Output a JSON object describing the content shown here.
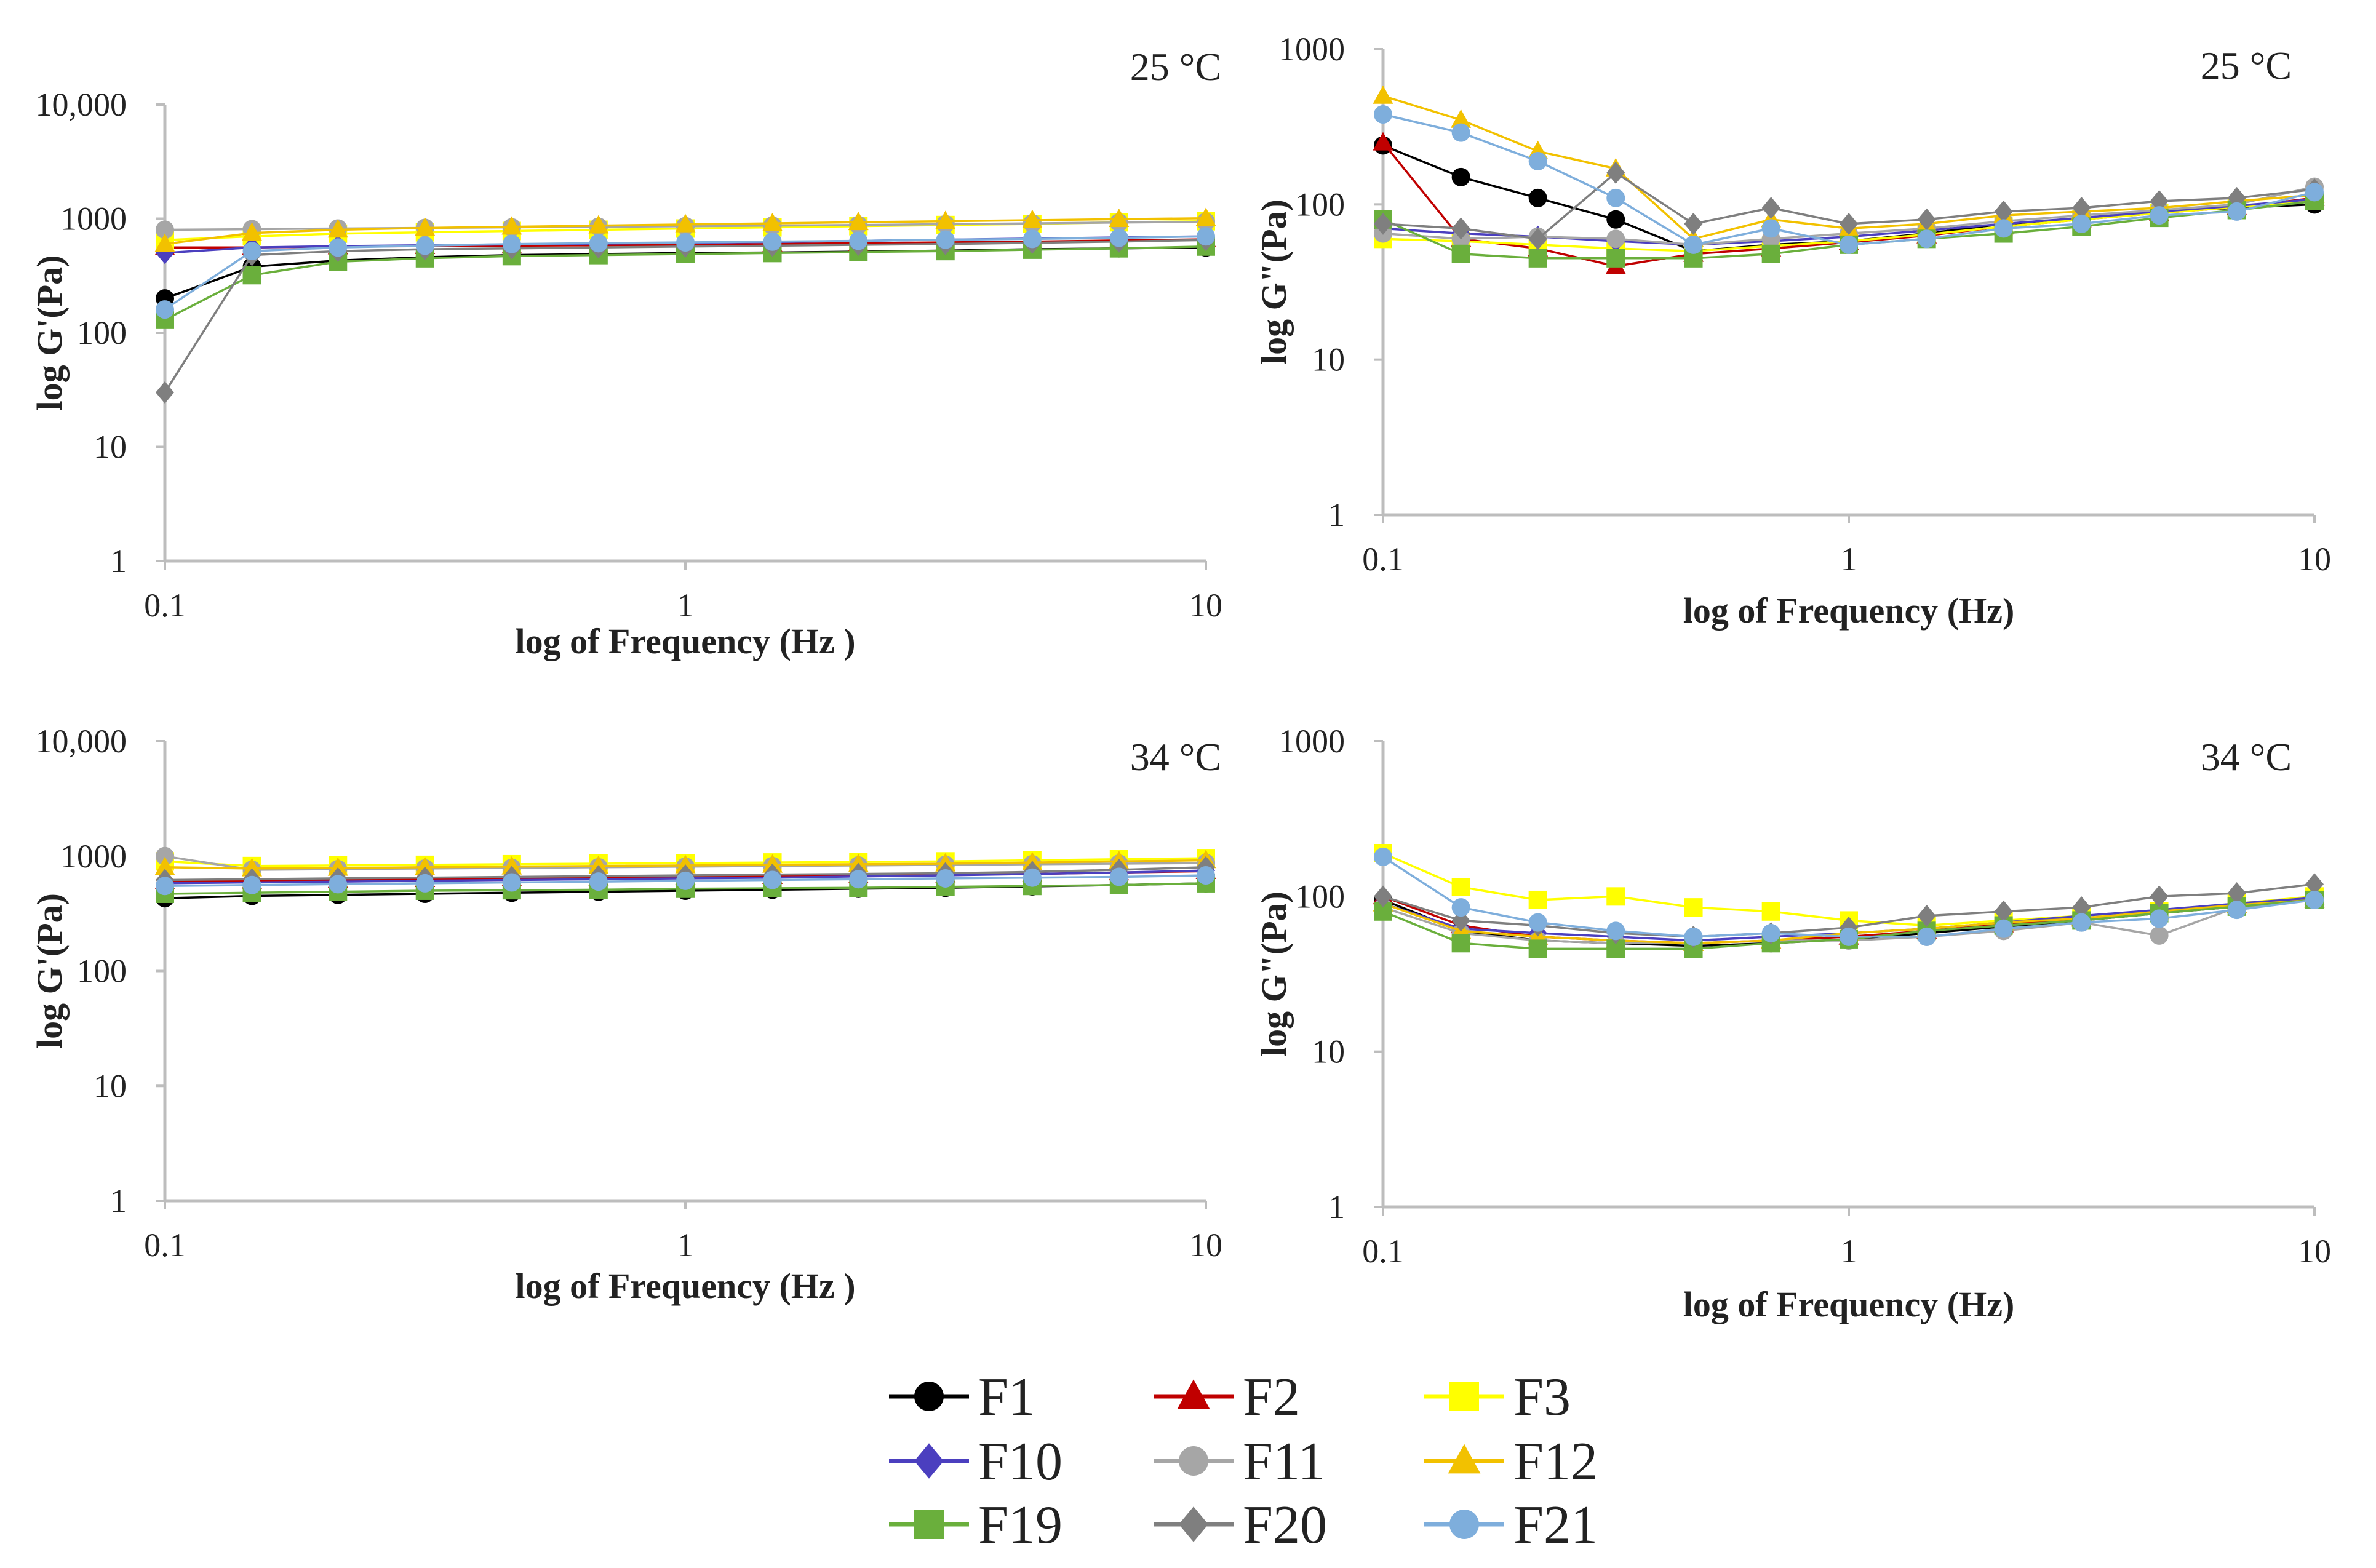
{
  "chart_data": [
    {
      "id": "p1",
      "type": "line",
      "title": "25 °C",
      "xlabel": "log of Frequency (Hz )",
      "ylabel": "log G'(Pa)",
      "xscale": "log",
      "yscale": "log",
      "xlim": [
        0.1,
        10
      ],
      "ylim": [
        1,
        10000
      ],
      "xticks": [
        {
          "v": 0.1,
          "label": "0.1"
        },
        {
          "v": 1,
          "label": "1"
        },
        {
          "v": 10,
          "label": "10"
        }
      ],
      "yticks": [
        {
          "v": 1,
          "label": "1"
        },
        {
          "v": 10,
          "label": "10"
        },
        {
          "v": 100,
          "label": "100"
        },
        {
          "v": 1000,
          "label": "1000"
        },
        {
          "v": 10000,
          "label": "10,000"
        }
      ],
      "x": [
        0.1,
        0.147,
        0.215,
        0.316,
        0.464,
        0.681,
        1.0,
        1.47,
        2.15,
        3.16,
        4.64,
        6.81,
        10.0
      ],
      "series": [
        {
          "name": "F1",
          "values": [
            200,
            380,
            430,
            460,
            480,
            490,
            500,
            505,
            515,
            525,
            540,
            550,
            560
          ]
        },
        {
          "name": "F2",
          "values": [
            560,
            560,
            570,
            575,
            580,
            585,
            590,
            600,
            610,
            620,
            630,
            645,
            660
          ]
        },
        {
          "name": "F3",
          "values": [
            650,
            700,
            740,
            760,
            780,
            800,
            820,
            840,
            860,
            880,
            900,
            930,
            950
          ]
        },
        {
          "name": "F10",
          "values": [
            500,
            560,
            575,
            585,
            595,
            605,
            615,
            625,
            640,
            655,
            670,
            685,
            700
          ]
        },
        {
          "name": "F11",
          "values": [
            800,
            810,
            820,
            830,
            840,
            850,
            860,
            870,
            880,
            895,
            910,
            925,
            940
          ]
        },
        {
          "name": "F12",
          "values": [
            600,
            750,
            800,
            830,
            850,
            870,
            890,
            910,
            930,
            950,
            970,
            990,
            1010
          ]
        },
        {
          "name": "F19",
          "values": [
            130,
            320,
            420,
            450,
            470,
            480,
            490,
            500,
            510,
            520,
            535,
            550,
            570
          ]
        },
        {
          "name": "F20",
          "values": [
            30,
            480,
            520,
            540,
            550,
            560,
            570,
            580,
            590,
            600,
            615,
            630,
            650
          ]
        },
        {
          "name": "F21",
          "values": [
            160,
            520,
            560,
            580,
            600,
            610,
            620,
            630,
            640,
            655,
            665,
            680,
            700
          ]
        }
      ]
    },
    {
      "id": "p2",
      "type": "line",
      "title": "25 °C",
      "xlabel": "log of Frequency (Hz)",
      "ylabel": "log G\"(Pa)",
      "xscale": "log",
      "yscale": "log",
      "xlim": [
        0.1,
        10
      ],
      "ylim": [
        1,
        1000
      ],
      "xticks": [
        {
          "v": 0.1,
          "label": "0.1"
        },
        {
          "v": 1,
          "label": "1"
        },
        {
          "v": 10,
          "label": "10"
        }
      ],
      "yticks": [
        {
          "v": 1,
          "label": "1"
        },
        {
          "v": 10,
          "label": "10"
        },
        {
          "v": 100,
          "label": "100"
        },
        {
          "v": 1000,
          "label": "1000"
        }
      ],
      "x": [
        0.1,
        0.147,
        0.215,
        0.316,
        0.464,
        0.681,
        1.0,
        1.47,
        2.15,
        3.16,
        4.64,
        6.81,
        10.0
      ],
      "series": [
        {
          "name": "F1",
          "values": [
            240,
            150,
            110,
            80,
            50,
            55,
            58,
            65,
            75,
            80,
            90,
            95,
            100
          ]
        },
        {
          "name": "F2",
          "values": [
            250,
            60,
            52,
            40,
            48,
            52,
            57,
            63,
            72,
            80,
            88,
            96,
            110
          ]
        },
        {
          "name": "F3",
          "values": [
            60,
            58,
            55,
            52,
            50,
            54,
            58,
            64,
            72,
            80,
            88,
            96,
            105
          ]
        },
        {
          "name": "F10",
          "values": [
            70,
            65,
            62,
            58,
            55,
            58,
            62,
            68,
            75,
            82,
            90,
            98,
            108
          ]
        },
        {
          "name": "F11",
          "values": [
            65,
            60,
            62,
            60,
            55,
            60,
            65,
            70,
            78,
            85,
            92,
            100,
            130
          ]
        },
        {
          "name": "F12",
          "values": [
            500,
            350,
            220,
            170,
            60,
            80,
            70,
            75,
            85,
            90,
            95,
            105,
            115
          ]
        },
        {
          "name": "F19",
          "values": [
            80,
            48,
            45,
            45,
            45,
            48,
            55,
            60,
            65,
            72,
            82,
            92,
            105
          ]
        },
        {
          "name": "F20",
          "values": [
            75,
            70,
            60,
            160,
            75,
            95,
            75,
            80,
            90,
            95,
            105,
            110,
            125
          ]
        },
        {
          "name": "F21",
          "values": [
            380,
            290,
            190,
            110,
            55,
            70,
            55,
            60,
            70,
            75,
            85,
            90,
            120
          ]
        }
      ]
    },
    {
      "id": "p3",
      "type": "line",
      "title": "34 °C",
      "xlabel": "log  of Frequency (Hz )",
      "ylabel": "log G'(Pa)",
      "xscale": "log",
      "yscale": "log",
      "xlim": [
        0.1,
        10
      ],
      "ylim": [
        1,
        10000
      ],
      "xticks": [
        {
          "v": 0.1,
          "label": "0.1"
        },
        {
          "v": 1,
          "label": "1"
        },
        {
          "v": 10,
          "label": "10"
        }
      ],
      "yticks": [
        {
          "v": 1,
          "label": "1"
        },
        {
          "v": 10,
          "label": "10"
        },
        {
          "v": 100,
          "label": "100"
        },
        {
          "v": 1000,
          "label": "1000"
        },
        {
          "v": 10000,
          "label": "10,000"
        }
      ],
      "x": [
        0.1,
        0.147,
        0.215,
        0.316,
        0.464,
        0.681,
        1.0,
        1.47,
        2.15,
        3.16,
        4.64,
        6.81,
        10.0
      ],
      "series": [
        {
          "name": "F1",
          "values": [
            430,
            450,
            460,
            470,
            480,
            490,
            500,
            510,
            520,
            530,
            545,
            560,
            580
          ]
        },
        {
          "name": "F2",
          "values": [
            600,
            610,
            620,
            630,
            640,
            650,
            660,
            670,
            680,
            690,
            700,
            720,
            740
          ]
        },
        {
          "name": "F3",
          "values": [
            900,
            820,
            830,
            840,
            850,
            860,
            870,
            880,
            890,
            900,
            920,
            940,
            960
          ]
        },
        {
          "name": "F10",
          "values": [
            580,
            590,
            600,
            610,
            620,
            630,
            640,
            650,
            665,
            680,
            700,
            720,
            750
          ]
        },
        {
          "name": "F11",
          "values": [
            1000,
            760,
            770,
            780,
            790,
            800,
            810,
            820,
            830,
            840,
            850,
            860,
            870
          ]
        },
        {
          "name": "F12",
          "values": [
            800,
            780,
            790,
            800,
            810,
            820,
            830,
            840,
            850,
            860,
            880,
            900,
            920
          ]
        },
        {
          "name": "F19",
          "values": [
            470,
            480,
            490,
            500,
            505,
            510,
            520,
            525,
            530,
            540,
            550,
            560,
            580
          ]
        },
        {
          "name": "F20",
          "values": [
            620,
            630,
            640,
            650,
            660,
            670,
            680,
            690,
            700,
            710,
            730,
            760,
            800
          ]
        },
        {
          "name": "F21",
          "values": [
            550,
            560,
            570,
            580,
            590,
            600,
            610,
            620,
            630,
            640,
            650,
            660,
            680
          ]
        }
      ]
    },
    {
      "id": "p4",
      "type": "line",
      "title": "34 °C",
      "xlabel": "log of Frequency (Hz)",
      "ylabel": "log G\"(Pa)",
      "xscale": "log",
      "yscale": "log",
      "xlim": [
        0.1,
        10
      ],
      "ylim": [
        1,
        1000
      ],
      "xticks": [
        {
          "v": 0.1,
          "label": "0.1"
        },
        {
          "v": 1,
          "label": "1"
        },
        {
          "v": 10,
          "label": "10"
        }
      ],
      "yticks": [
        {
          "v": 1,
          "label": "1"
        },
        {
          "v": 10,
          "label": "10"
        },
        {
          "v": 100,
          "label": "100"
        },
        {
          "v": 1000,
          "label": "1000"
        }
      ],
      "x": [
        0.1,
        0.147,
        0.215,
        0.316,
        0.464,
        0.681,
        1.0,
        1.47,
        2.15,
        3.16,
        4.64,
        6.81,
        10.0
      ],
      "series": [
        {
          "name": "F1",
          "values": [
            95,
            60,
            52,
            50,
            48,
            50,
            53,
            58,
            64,
            70,
            78,
            86,
            95
          ]
        },
        {
          "name": "F2",
          "values": [
            100,
            65,
            55,
            52,
            50,
            52,
            55,
            60,
            66,
            72,
            80,
            88,
            100
          ]
        },
        {
          "name": "F3",
          "values": [
            190,
            115,
            95,
            100,
            85,
            80,
            70,
            65,
            70,
            75,
            80,
            90,
            100
          ]
        },
        {
          "name": "F10",
          "values": [
            90,
            62,
            58,
            55,
            52,
            55,
            58,
            62,
            68,
            75,
            82,
            90,
            98
          ]
        },
        {
          "name": "F11",
          "values": [
            85,
            58,
            52,
            50,
            50,
            52,
            52,
            55,
            60,
            68,
            56,
            85,
            95
          ]
        },
        {
          "name": "F12",
          "values": [
            90,
            60,
            55,
            52,
            50,
            52,
            58,
            62,
            68,
            72,
            80,
            88,
            95
          ]
        },
        {
          "name": "F19",
          "values": [
            80,
            50,
            46,
            46,
            46,
            50,
            53,
            60,
            65,
            70,
            78,
            86,
            95
          ]
        },
        {
          "name": "F20",
          "values": [
            100,
            70,
            65,
            58,
            55,
            58,
            63,
            75,
            80,
            85,
            100,
            105,
            120
          ]
        },
        {
          "name": "F21",
          "values": [
            180,
            85,
            68,
            60,
            55,
            58,
            55,
            55,
            62,
            68,
            72,
            82,
            95
          ]
        }
      ]
    }
  ],
  "legend": [
    {
      "name": "F1",
      "color": "#000000",
      "marker": "circle"
    },
    {
      "name": "F2",
      "color": "#c00000",
      "marker": "triangle"
    },
    {
      "name": "F3",
      "color": "#ffff00",
      "marker": "square"
    },
    {
      "name": "F10",
      "color": "#4b3fbf",
      "marker": "diamond"
    },
    {
      "name": "F11",
      "color": "#a6a6a6",
      "marker": "circle"
    },
    {
      "name": "F12",
      "color": "#f2c100",
      "marker": "triangle"
    },
    {
      "name": "F19",
      "color": "#6aaf3c",
      "marker": "square"
    },
    {
      "name": "F20",
      "color": "#7f7f7f",
      "marker": "diamond"
    },
    {
      "name": "F21",
      "color": "#7eaedc",
      "marker": "circle"
    }
  ]
}
